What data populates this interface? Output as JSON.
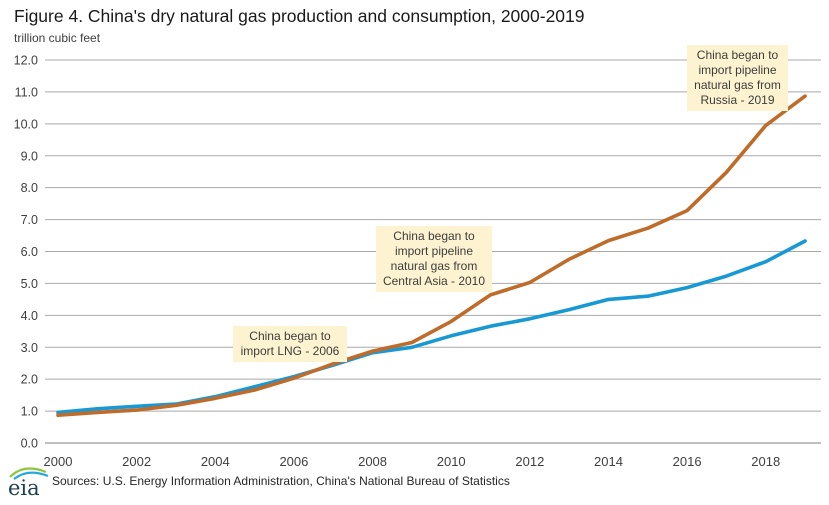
{
  "header": {
    "title": "Figure 4. China's dry natural gas production and consumption, 2000-2019",
    "units_label": "trillion cubic feet"
  },
  "chart_data": {
    "type": "line",
    "title": "Figure 4. China's dry natural gas production and consumption, 2000-2019",
    "ylabel": "trillion cubic feet",
    "xlabel": "",
    "x": [
      2000,
      2001,
      2002,
      2003,
      2004,
      2005,
      2006,
      2007,
      2008,
      2009,
      2010,
      2011,
      2012,
      2013,
      2014,
      2015,
      2016,
      2017,
      2018,
      2019
    ],
    "series": [
      {
        "name": "production",
        "color": "#1899d4",
        "values": [
          0.96,
          1.07,
          1.15,
          1.22,
          1.45,
          1.76,
          2.08,
          2.44,
          2.83,
          3.0,
          3.36,
          3.66,
          3.89,
          4.18,
          4.5,
          4.6,
          4.87,
          5.23,
          5.68,
          6.33
        ]
      },
      {
        "name": "consumption",
        "color": "#bf6b29",
        "values": [
          0.87,
          0.96,
          1.03,
          1.18,
          1.4,
          1.66,
          2.03,
          2.48,
          2.88,
          3.15,
          3.81,
          4.64,
          5.03,
          5.76,
          6.34,
          6.73,
          7.28,
          8.48,
          9.95,
          10.87
        ]
      }
    ],
    "ylim": [
      0,
      12
    ],
    "y_tick_step": 1.0,
    "y_tick_labels": [
      "0.0",
      "1.0",
      "2.0",
      "3.0",
      "4.0",
      "5.0",
      "6.0",
      "7.0",
      "8.0",
      "9.0",
      "10.0",
      "11.0",
      "12.0"
    ],
    "x_tick_labels": [
      "2000",
      "2002",
      "2004",
      "2006",
      "2008",
      "2010",
      "2012",
      "2014",
      "2016",
      "2018"
    ],
    "grid": true,
    "legend": "none",
    "gridline_color": "#a9a9a9",
    "axis_line_color": "#7f7f7f",
    "annotations": [
      "China began to import LNG - 2006",
      "China began to import pipeline natural gas from Central Asia - 2010",
      "China began to import pipeline natural gas from Russia - 2019"
    ]
  },
  "annotations": {
    "lng": "China began to\nimport LNG - 2006",
    "central_asia": "China began to\nimport pipeline\nnatural gas from\nCentral Asia - 2010",
    "russia": "China began to\nimport pipeline\nnatural gas from\nRussia - 2019"
  },
  "footer": {
    "logo_text": "eia",
    "sources": "Sources: U.S. Energy Information Administration, China's National Bureau of Statistics"
  },
  "colors": {
    "production_line": "#1899d4",
    "consumption_line": "#bf6b29",
    "annotation_bg": "#fdf3d0",
    "logo_text": "#1c3f52",
    "logo_arc_green": "#8cc63e",
    "logo_arc_blue": "#26a8df"
  }
}
